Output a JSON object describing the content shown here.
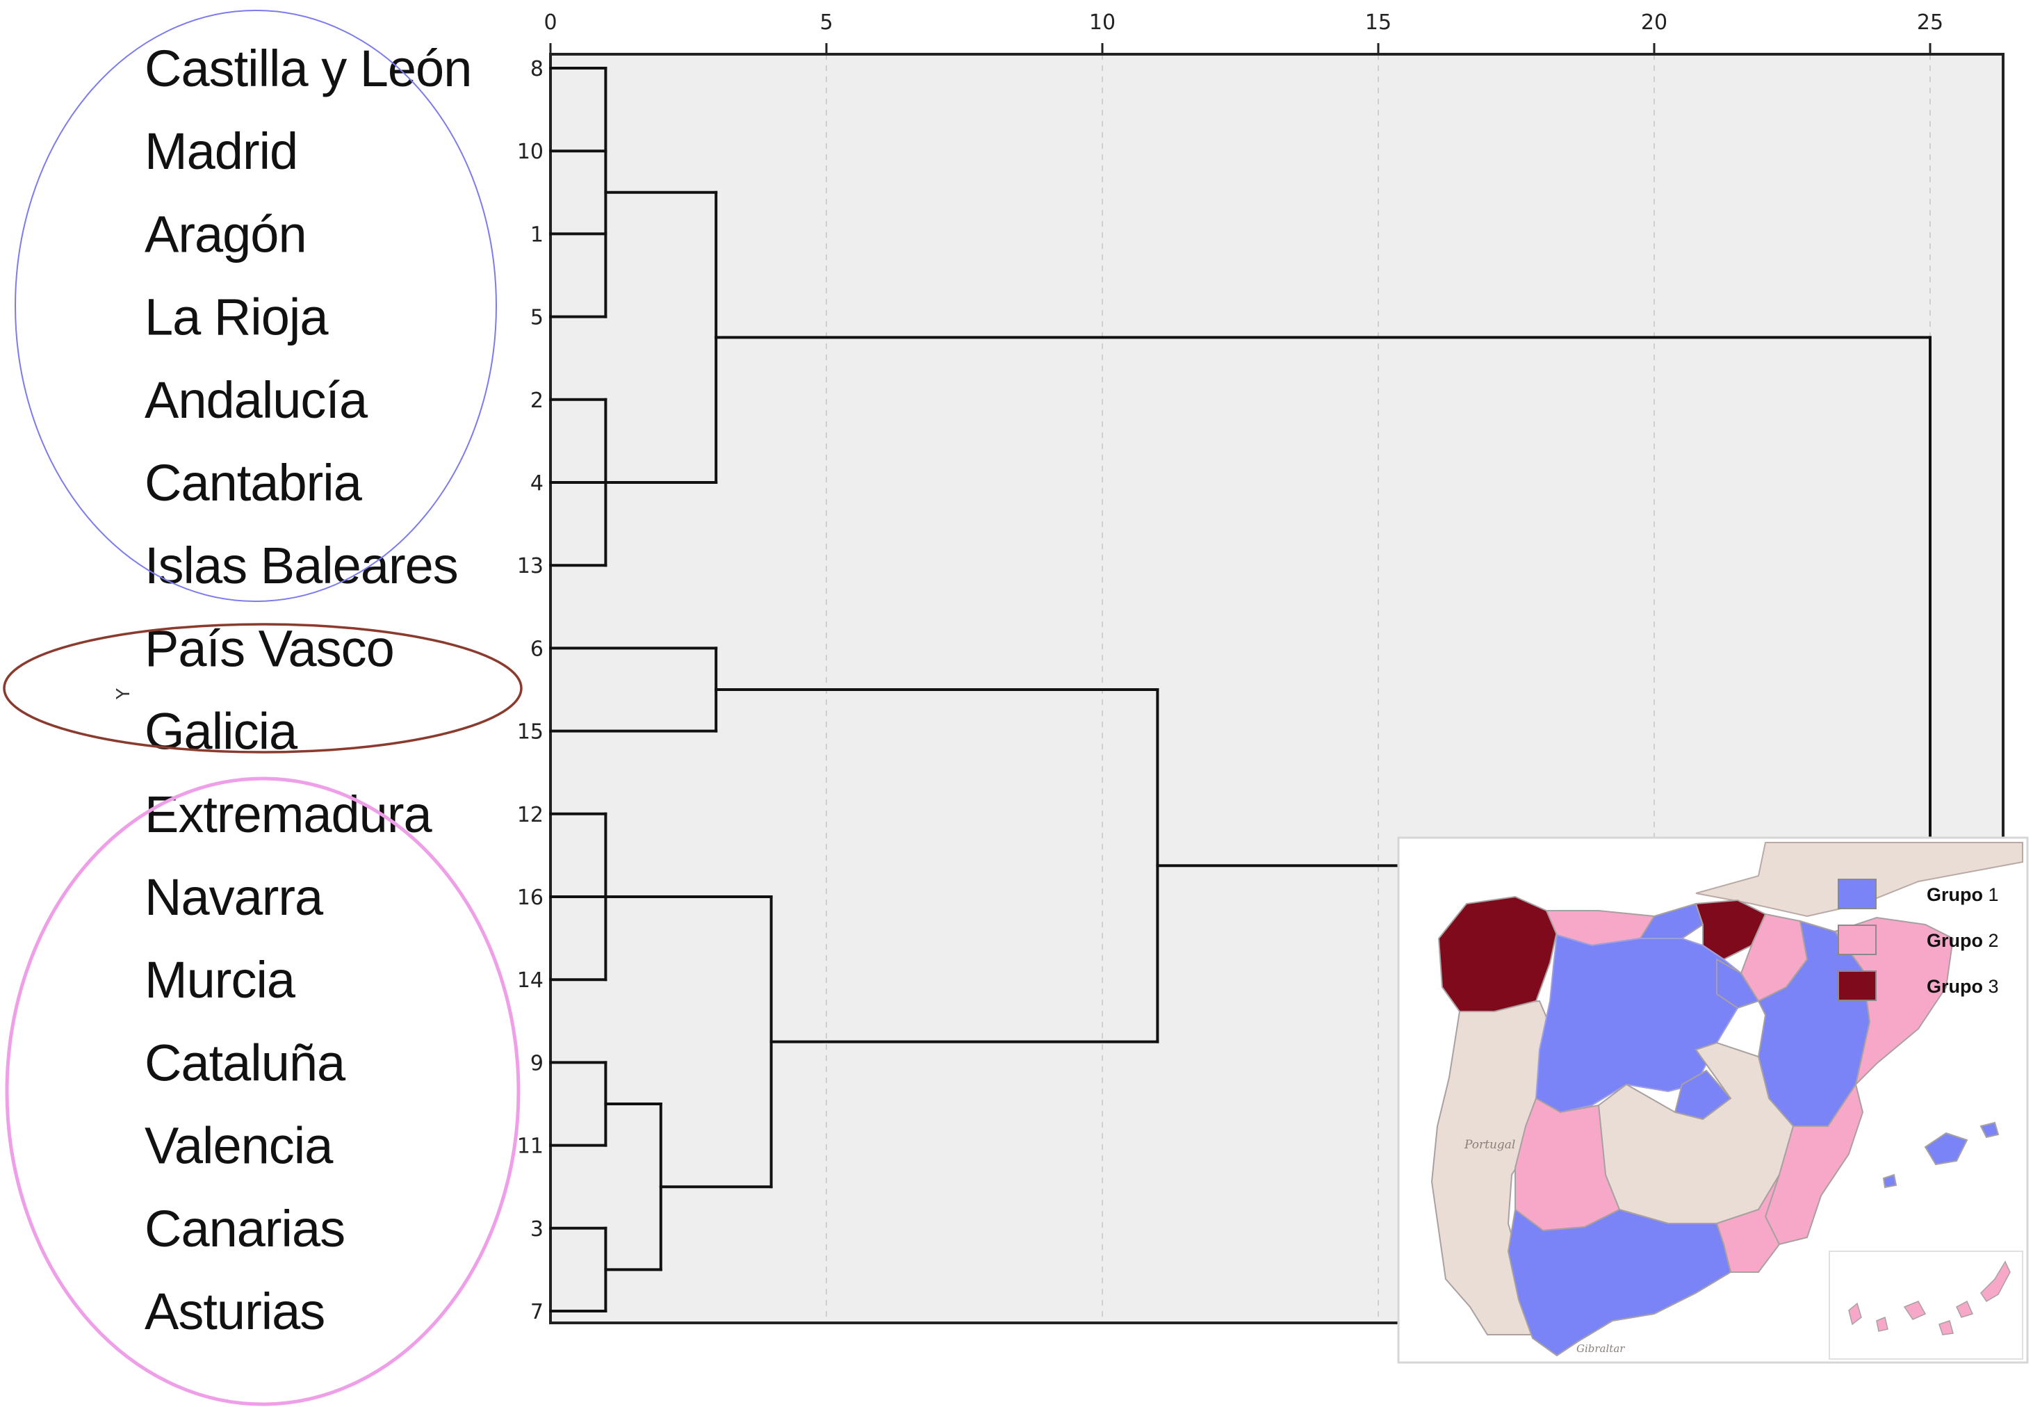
{
  "chart_data": {
    "type": "dendrogram",
    "x_axis": {
      "ticks": [
        0,
        5,
        10,
        15,
        20,
        25
      ],
      "range": [
        0,
        26.3
      ]
    },
    "leaves": [
      {
        "id": "8",
        "region": "Castilla y León"
      },
      {
        "id": "10",
        "region": "Madrid"
      },
      {
        "id": "1",
        "region": "Aragón"
      },
      {
        "id": "5",
        "region": "La Rioja"
      },
      {
        "id": "2",
        "region": "Andalucía"
      },
      {
        "id": "4",
        "region": "Cantabria"
      },
      {
        "id": "13",
        "region": "Islas Baleares"
      },
      {
        "id": "6",
        "region": "País Vasco"
      },
      {
        "id": "15",
        "region": "Galicia"
      },
      {
        "id": "12",
        "region": "Extremadura"
      },
      {
        "id": "16",
        "region": "Navarra"
      },
      {
        "id": "14",
        "region": "Murcia"
      },
      {
        "id": "9",
        "region": "Cataluña"
      },
      {
        "id": "11",
        "region": "Valencia"
      },
      {
        "id": "3",
        "region": "Canarias"
      },
      {
        "id": "7",
        "region": "Asturias"
      }
    ],
    "merges": [
      {
        "id": "A",
        "children": [
          "8",
          "10",
          "1",
          "5"
        ],
        "height": 1
      },
      {
        "id": "B",
        "children": [
          "2",
          "4",
          "13"
        ],
        "height": 1
      },
      {
        "id": "C",
        "children": [
          "A",
          "B"
        ],
        "height": 3
      },
      {
        "id": "D",
        "children": [
          "6",
          "15"
        ],
        "height": 3
      },
      {
        "id": "E",
        "children": [
          "12",
          "16",
          "14"
        ],
        "height": 1
      },
      {
        "id": "F",
        "children": [
          "9",
          "11"
        ],
        "height": 1
      },
      {
        "id": "G",
        "children": [
          "3",
          "7"
        ],
        "height": 1
      },
      {
        "id": "H",
        "children": [
          "F",
          "G"
        ],
        "height": 2
      },
      {
        "id": "I",
        "children": [
          "E",
          "H"
        ],
        "height": 4
      },
      {
        "id": "J",
        "children": [
          "D",
          "I"
        ],
        "height": 11
      },
      {
        "id": "K",
        "children": [
          "C",
          "J"
        ],
        "height": 25
      }
    ],
    "groups": [
      {
        "name": "Grupo 1",
        "members": [
          "8",
          "10",
          "1",
          "5",
          "2",
          "4",
          "13"
        ],
        "outline_color": "#7b7bef"
      },
      {
        "name": "Grupo 3",
        "members": [
          "6",
          "15"
        ],
        "outline_color": "#8b3a2e"
      },
      {
        "name": "Grupo 2",
        "members": [
          "12",
          "16",
          "14",
          "9",
          "11",
          "3",
          "7"
        ],
        "outline_color": "#ef9ee8"
      }
    ],
    "legend": {
      "placement": "top-right of map inset",
      "entries": [
        {
          "word": "Grupo",
          "num": "1",
          "color": "#7b84f7"
        },
        {
          "word": "Grupo",
          "num": "2",
          "color": "#f7a8c8"
        },
        {
          "word": "Grupo",
          "num": "3",
          "color": "#7e0a1c"
        }
      ]
    },
    "map_inset": {
      "colors": {
        "group1": "#7b84f7",
        "group2": "#f7a8c8",
        "group3": "#7e0a1c",
        "other": "#e9ddd6",
        "sea": "#ffffff",
        "border": "#a9a0a0"
      },
      "place_labels": [
        "Portugal",
        "Gibraltar"
      ]
    },
    "stray_mark": "Y"
  }
}
